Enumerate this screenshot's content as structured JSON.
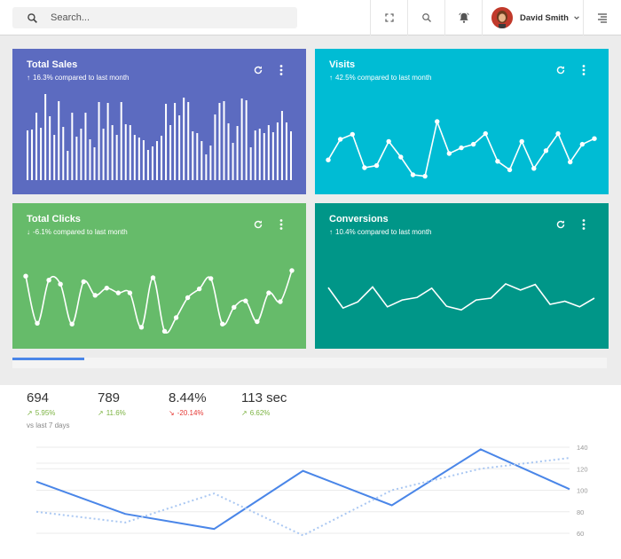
{
  "search": {
    "placeholder": "Search..."
  },
  "user": {
    "name": "David Smith"
  },
  "icons": {
    "search": "search-icon",
    "fullscreen": "fullscreen-icon",
    "zoom": "search-icon",
    "bell": "bell-icon",
    "menu": "menu-icon",
    "refresh": "refresh-icon",
    "more": "more-vert-icon"
  },
  "colors": {
    "total_sales": "#5c6bc0",
    "visits": "#00bcd4",
    "total_clicks": "#66bb6a",
    "conversions": "#009688",
    "accent": "#4a86e8",
    "up": "#7cb342",
    "down": "#e53935"
  },
  "cards": [
    {
      "title": "Total Sales",
      "direction": "up",
      "subtitle": "16.3% compared to last month"
    },
    {
      "title": "Visits",
      "direction": "up",
      "subtitle": "42.5% compared to last month"
    },
    {
      "title": "Total Clicks",
      "direction": "down",
      "subtitle": "-6.1% compared to last month"
    },
    {
      "title": "Conversions",
      "direction": "up",
      "subtitle": "10.4% compared to last month"
    }
  ],
  "stats": [
    {
      "value": "694",
      "change": "5.95%",
      "direction": "up",
      "note": "vs last 7 days"
    },
    {
      "value": "789",
      "change": "11.6%",
      "direction": "up",
      "note": ""
    },
    {
      "value": "8.44%",
      "change": "-20.14%",
      "direction": "down",
      "note": ""
    },
    {
      "value": "113 sec",
      "change": "6.62%",
      "direction": "up",
      "note": ""
    }
  ],
  "chart_data": [
    {
      "type": "bar",
      "values": [
        56,
        57,
        76,
        59,
        97,
        72,
        51,
        89,
        60,
        33,
        76,
        49,
        58,
        76,
        46,
        37,
        88,
        58,
        87,
        62,
        51,
        88,
        63,
        62,
        51,
        48,
        45,
        34,
        38,
        44,
        50,
        86,
        62,
        87,
        73,
        93,
        88,
        55,
        53,
        44,
        29,
        39,
        74,
        87,
        89,
        64,
        42,
        61,
        92,
        90,
        37,
        56,
        58,
        53,
        62,
        54,
        65,
        78,
        65,
        55
      ],
      "ylim": [
        0,
        100
      ]
    },
    {
      "type": "line",
      "values": [
        26,
        55,
        62,
        15,
        18,
        52,
        30,
        5,
        3,
        80,
        35,
        43,
        48,
        63,
        24,
        12,
        52,
        14,
        39,
        63,
        23,
        48,
        56
      ],
      "ylim": [
        0,
        100
      ]
    },
    {
      "type": "line",
      "values": [
        72,
        13,
        67,
        62,
        12,
        65,
        48,
        57,
        51,
        51,
        8,
        70,
        3,
        20,
        45,
        56,
        69,
        12,
        33,
        41,
        15,
        51,
        40,
        79
      ],
      "ylim": [
        0,
        100
      ]
    },
    {
      "type": "line",
      "values": [
        57,
        24,
        34,
        58,
        26,
        37,
        41,
        56,
        27,
        21,
        37,
        40,
        63,
        53,
        62,
        30,
        35,
        26,
        40
      ],
      "ylim": [
        0,
        100
      ]
    },
    {
      "type": "line",
      "y_ticks": [
        60,
        80,
        100,
        120,
        140
      ],
      "ylim": [
        55,
        145
      ],
      "series": [
        {
          "style": "solid",
          "values": [
            108,
            78,
            64,
            118,
            86,
            138,
            101
          ]
        },
        {
          "style": "dotted",
          "values": [
            80,
            70,
            97,
            58,
            100,
            120,
            130
          ]
        }
      ]
    }
  ]
}
